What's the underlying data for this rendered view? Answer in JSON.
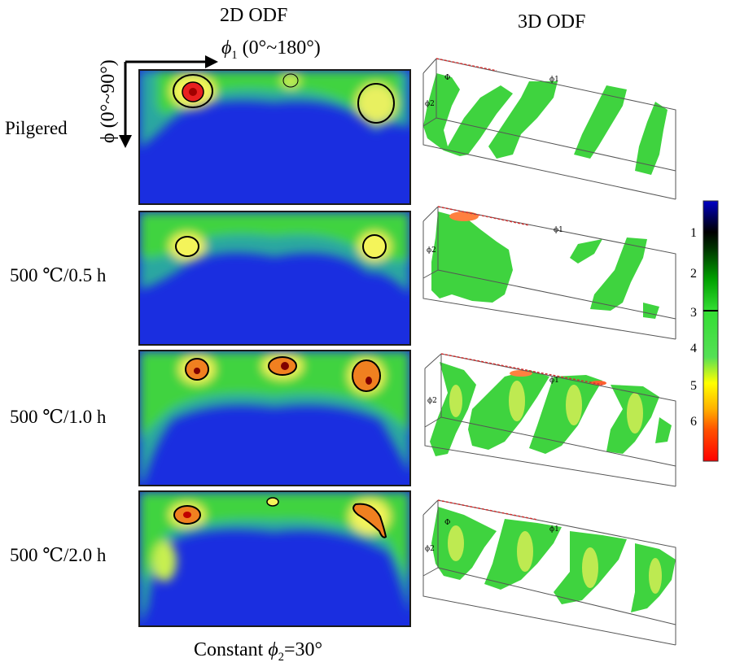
{
  "header": {
    "left_title": "2D ODF",
    "right_title": "3D ODF",
    "phi1_symbol": "ϕ",
    "phi1_sub": "1",
    "phi1_range": "(0°~180°)",
    "phi_axis": "ϕ (0°~90°)"
  },
  "rows": [
    {
      "label": "Pilgered"
    },
    {
      "label": "500 ℃/0.5 h"
    },
    {
      "label": "500 ℃/1.0 h"
    },
    {
      "label": "500 ℃/2.0 h"
    }
  ],
  "footer": {
    "prefix": "Constant ",
    "symbol": "ϕ",
    "sub": "2",
    "suffix": "=30°"
  },
  "box_labels": {
    "phi1": "ϕ1",
    "phi2": "ϕ2",
    "Phi": "Φ"
  },
  "colorbar": {
    "ticks": [
      "1",
      "2",
      "3",
      "4",
      "5",
      "6"
    ],
    "colors": [
      "#0000c8",
      "#000000",
      "#00a000",
      "#33dd33",
      "#ffff00",
      "#ff8000",
      "#ff0000"
    ]
  },
  "colors": {
    "background_blue": "#1a2ee0",
    "green": "#3fd33f",
    "yellow": "#f4f45a",
    "red": "#e82020"
  }
}
